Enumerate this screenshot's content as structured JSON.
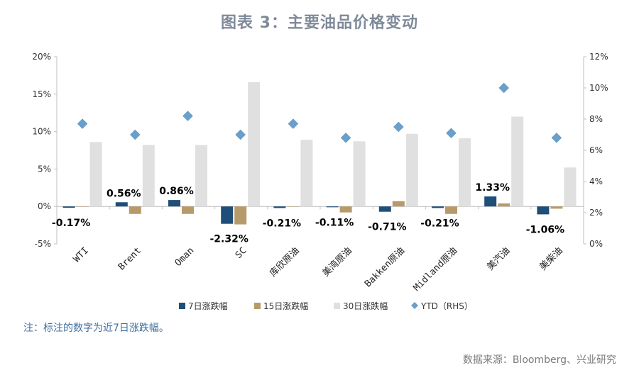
{
  "title": "图表 3：主要油品价格变动",
  "note": "注：标注的数字为近7日涨跌幅。",
  "source": "数据来源：Bloomberg、兴业研究",
  "colors": {
    "s7": "#1f4e79",
    "s15": "#b89a6a",
    "s30": "#e0e0e0",
    "ytd": "#6a9fcc",
    "axis": "#bfbfbf",
    "label": "#000000"
  },
  "chart_data": {
    "type": "bar",
    "categories": [
      "WTI",
      "Brent",
      "Oman",
      "SC",
      "库欣原油",
      "美湾原油",
      "Bakken原油",
      "Midland原油",
      "美汽油",
      "美柴油"
    ],
    "series": [
      {
        "name": "7日涨跌幅",
        "axis": "left",
        "values": [
          -0.17,
          0.56,
          0.86,
          -2.32,
          -0.21,
          -0.11,
          -0.71,
          -0.21,
          1.33,
          -1.06
        ]
      },
      {
        "name": "15日涨跌幅",
        "axis": "left",
        "values": [
          0.0,
          -1.0,
          -1.0,
          -2.4,
          0.0,
          -0.8,
          0.7,
          -1.0,
          0.4,
          -0.3
        ]
      },
      {
        "name": "30日涨跌幅",
        "axis": "left",
        "values": [
          8.6,
          8.2,
          8.2,
          16.6,
          8.9,
          8.7,
          9.7,
          9.1,
          12.0,
          5.2
        ]
      },
      {
        "name": "YTD（RHS）",
        "axis": "right",
        "type": "scatter",
        "values": [
          7.7,
          7.0,
          8.2,
          7.0,
          7.7,
          6.8,
          7.5,
          7.1,
          10.0,
          6.8
        ]
      }
    ],
    "data_labels": [
      "-0.17%",
      "0.56%",
      "0.86%",
      "-2.32%",
      "-0.21%",
      "-0.11%",
      "-0.71%",
      "-0.21%",
      "1.33%",
      "-1.06%"
    ],
    "left_axis": {
      "ylim": [
        -5,
        20
      ],
      "ticks": [
        -5,
        0,
        5,
        10,
        15,
        20
      ],
      "tick_labels": [
        "-5%",
        "0%",
        "5%",
        "10%",
        "15%",
        "20%"
      ]
    },
    "right_axis": {
      "ylim": [
        0,
        12
      ],
      "ticks": [
        0,
        2,
        4,
        6,
        8,
        10,
        12
      ],
      "tick_labels": [
        "0%",
        "2%",
        "4%",
        "6%",
        "8%",
        "10%",
        "12%"
      ]
    },
    "legend_position": "bottom",
    "grid": false
  }
}
